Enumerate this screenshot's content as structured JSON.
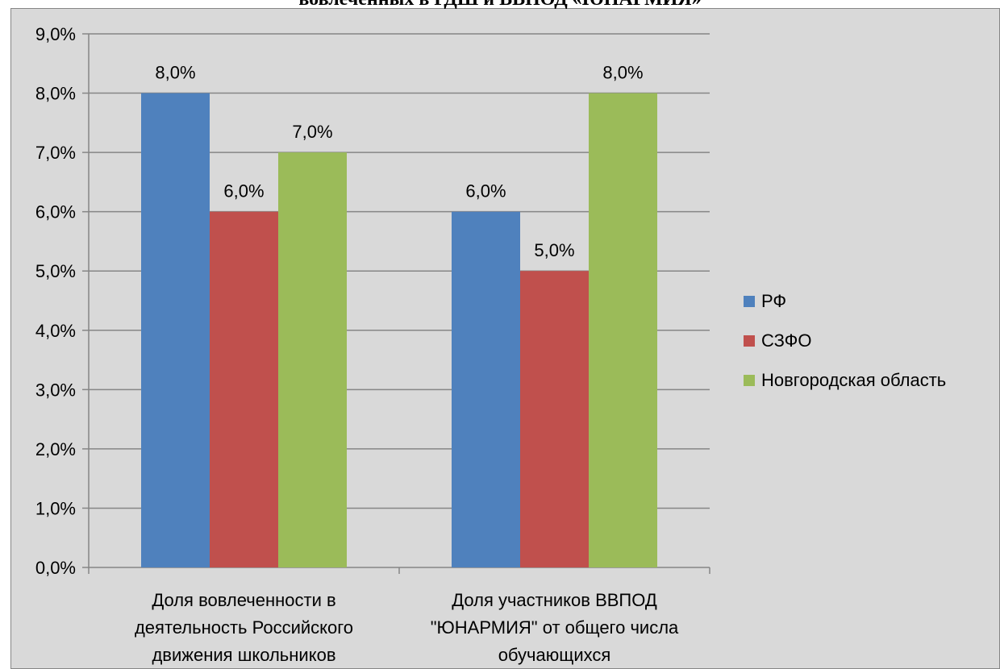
{
  "chart_data": {
    "type": "bar",
    "title": "вовлеченных в РДШ и ВВПОД «ЮНАРМИЯ»",
    "xlabel": "",
    "ylabel": "",
    "ylim": [
      0,
      9
    ],
    "y_tick_step": 1,
    "y_tick_labels": [
      "0,0%",
      "1,0%",
      "2,0%",
      "3,0%",
      "4,0%",
      "5,0%",
      "6,0%",
      "7,0%",
      "8,0%",
      "9,0%"
    ],
    "grid": true,
    "legend_position": "right",
    "categories": [
      [
        "Доля вовлеченности в",
        "деятельность Российского",
        "движения школьников"
      ],
      [
        "Доля участников ВВПОД",
        "\"ЮНАРМИЯ\" от общего числа",
        "обучающихся"
      ]
    ],
    "series": [
      {
        "name": "РФ",
        "color": "#4f81bd",
        "values": [
          8.0,
          6.0
        ],
        "labels": [
          "8,0%",
          "6,0%"
        ]
      },
      {
        "name": "СЗФО",
        "color": "#c0504d",
        "values": [
          6.0,
          5.0
        ],
        "labels": [
          "6,0%",
          "5,0%"
        ]
      },
      {
        "name": "Новгородская область",
        "color": "#9bbb59",
        "values": [
          7.0,
          8.0
        ],
        "labels": [
          "7,0%",
          "8,0%"
        ]
      }
    ]
  }
}
